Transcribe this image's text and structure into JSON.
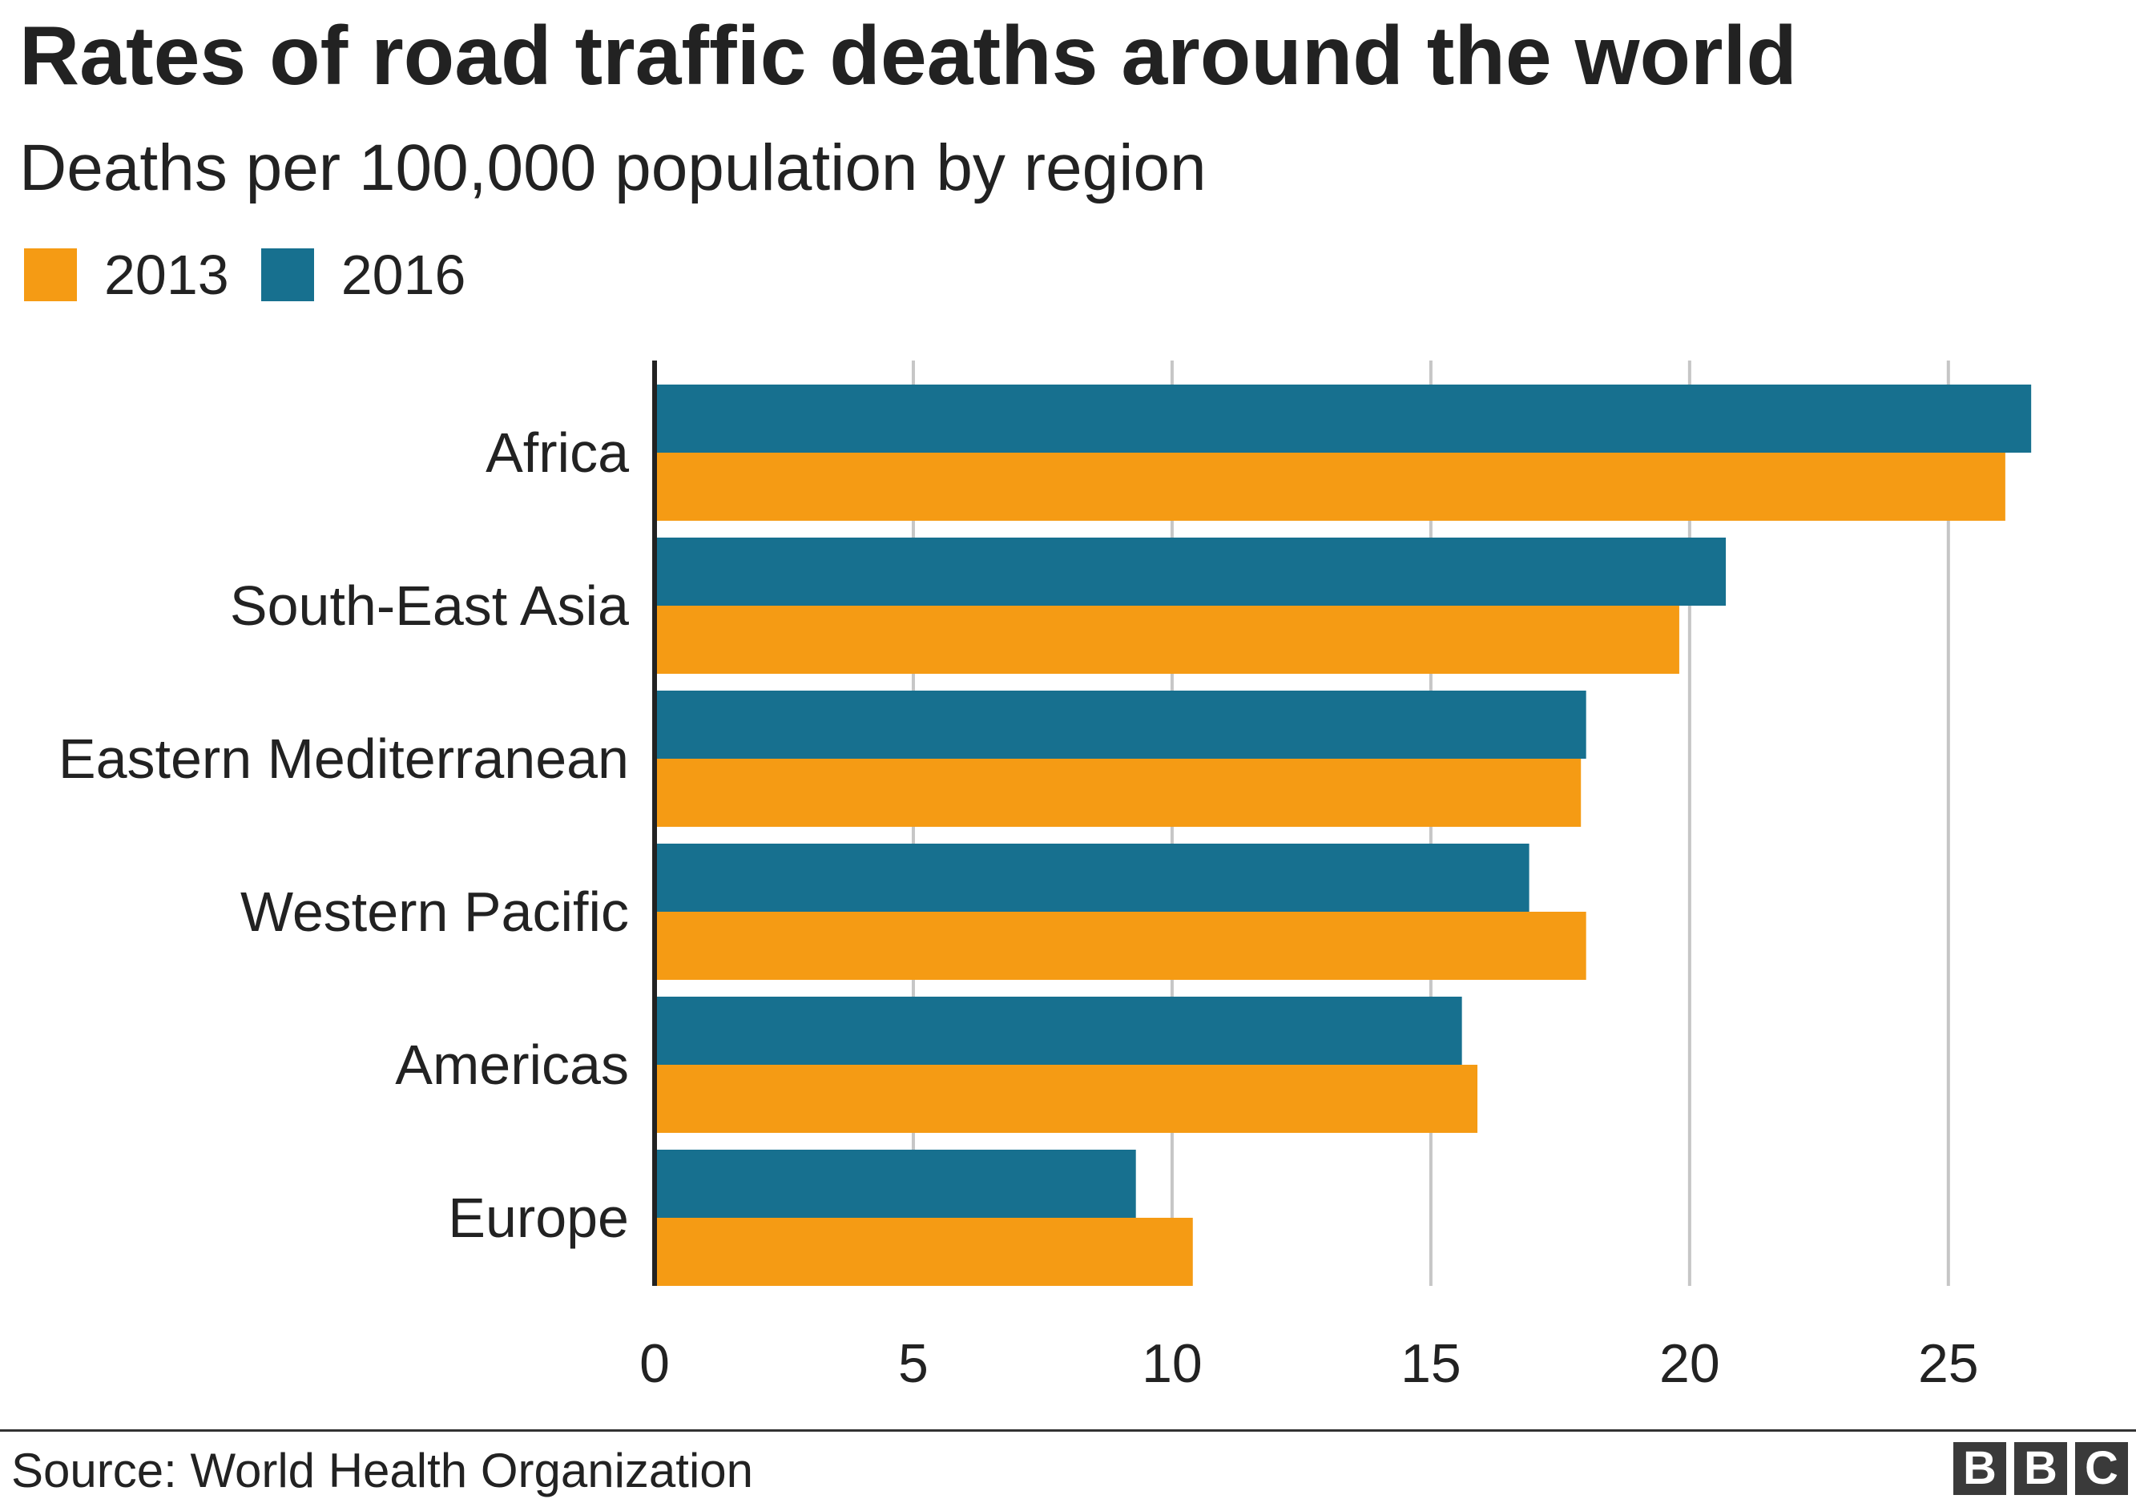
{
  "title": "Rates of road traffic deaths around the world",
  "subtitle": "Deaths per 100,000 population by region",
  "colors": {
    "2013": "#f59b14",
    "2016": "#17708f",
    "grid": "#c6c6c6",
    "axis": "#222222"
  },
  "legend": [
    {
      "label": "2013",
      "color": "#f59b14"
    },
    {
      "label": "2016",
      "color": "#17708f"
    }
  ],
  "chart_data": {
    "type": "bar",
    "orientation": "horizontal",
    "categories": [
      "Africa",
      "South-East Asia",
      "Eastern Mediterranean",
      "Western Pacific",
      "Americas",
      "Europe"
    ],
    "series": [
      {
        "name": "2016",
        "color": "#17708f",
        "values": [
          26.6,
          20.7,
          18.0,
          16.9,
          15.6,
          9.3
        ]
      },
      {
        "name": "2013",
        "color": "#f59b14",
        "values": [
          26.1,
          19.8,
          17.9,
          18.0,
          15.9,
          10.4
        ]
      }
    ],
    "xlim": [
      0,
      27
    ],
    "xticks": [
      0,
      5,
      10,
      15,
      20,
      25
    ],
    "xtick_labels": [
      "0",
      "5",
      "10",
      "15",
      "20",
      "25"
    ],
    "grid": true,
    "legend_position": "top-left"
  },
  "footer": {
    "source": "Source: World Health Organization",
    "logo_letters": [
      "B",
      "B",
      "C"
    ]
  }
}
